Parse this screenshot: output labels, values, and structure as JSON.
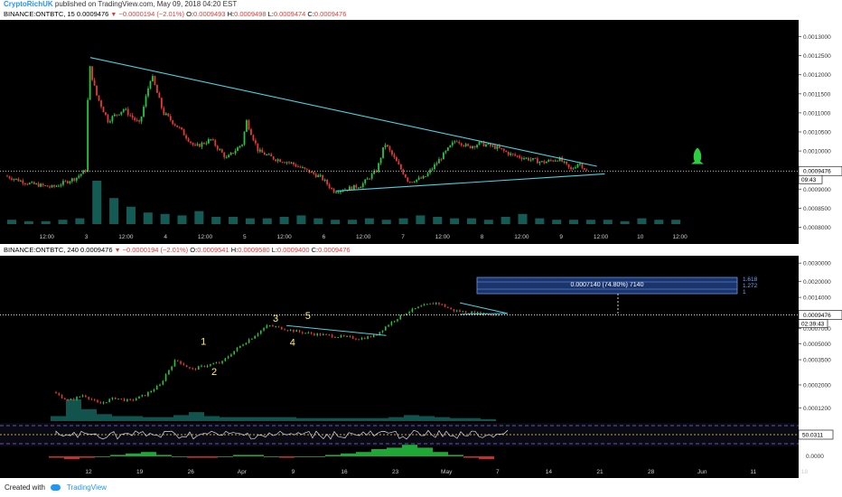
{
  "header": {
    "author": "CryptoRichUK",
    "publish_text": "published on TradingView.com, May 09, 2018 04:20 EST"
  },
  "top_legend": {
    "symbol": "BINANCE:ONTBTC, 15",
    "last": "0.0009476",
    "change": "−0.0000194 (−2.01%)",
    "o": "O:",
    "o_val": "0.0009493",
    "h": "H:",
    "h_val": "0.0009498",
    "l": "L:",
    "l_val": "0.0009474",
    "c": "C:",
    "c_val": "0.0009476"
  },
  "bottom_legend": {
    "symbol": "BINANCE:ONTBTC, 240",
    "last": "0.0009476",
    "change": "−0.0000194 (−2.01%)",
    "o": "O:",
    "o_val": "0.0009541",
    "h": "H:",
    "h_val": "0.0009580",
    "l": "L:",
    "l_val": "0.0009400",
    "c": "C:",
    "c_val": "0.0009476"
  },
  "footer": {
    "created_with": "Created with",
    "brand": "TradingView"
  },
  "colors": {
    "bull": "#26c640",
    "bear": "#e53935",
    "trendline": "#4dd0e1",
    "wave_label": "#fff176",
    "volume": "#26a69a",
    "rocket": "#2ecc40"
  },
  "chart_data": [
    {
      "type": "candlestick",
      "title": "BINANCE:ONTBTC, 15",
      "y_ticks": [
        "0.0013000",
        "0.0012500",
        "0.0012000",
        "0.0011500",
        "0.0011000",
        "0.0010500",
        "0.0010000",
        "0.0009500",
        "0.0009000",
        "0.0008500",
        "0.0008000"
      ],
      "ylim": [
        0.00078,
        0.00132
      ],
      "x_ticks": [
        "12:00",
        "3",
        "12:00",
        "4",
        "12:00",
        "5",
        "12:00",
        "6",
        "12:00",
        "7",
        "12:00",
        "8",
        "12:00",
        "9",
        "12:00",
        "10",
        "12:00"
      ],
      "last_price_label": "0.0009476",
      "countdown_label": "09:43",
      "trendlines": [
        {
          "name": "upper",
          "from": [
            3.05,
            0.001245
          ],
          "to": [
            9.45,
            0.00096
          ]
        },
        {
          "name": "lower",
          "from": [
            6.15,
            0.000895
          ],
          "to": [
            9.55,
            0.00094
          ]
        }
      ],
      "path_points": [
        [
          2.0,
          0.000935
        ],
        [
          2.3,
          0.000915
        ],
        [
          2.6,
          0.000905
        ],
        [
          2.9,
          0.00093
        ],
        [
          3.02,
          0.00095
        ],
        [
          3.06,
          0.00123
        ],
        [
          3.15,
          0.00115
        ],
        [
          3.3,
          0.00108
        ],
        [
          3.5,
          0.00111
        ],
        [
          3.7,
          0.00107
        ],
        [
          3.85,
          0.0012
        ],
        [
          4.0,
          0.0011
        ],
        [
          4.2,
          0.00106
        ],
        [
          4.4,
          0.00101
        ],
        [
          4.6,
          0.00103
        ],
        [
          4.8,
          0.00098
        ],
        [
          5.0,
          0.00102
        ],
        [
          5.05,
          0.00108
        ],
        [
          5.2,
          0.001
        ],
        [
          5.4,
          0.00098
        ],
        [
          5.6,
          0.00097
        ],
        [
          5.8,
          0.00095
        ],
        [
          6.0,
          0.00093
        ],
        [
          6.15,
          0.000895
        ],
        [
          6.3,
          0.0009
        ],
        [
          6.5,
          0.00091
        ],
        [
          6.7,
          0.00095
        ],
        [
          6.8,
          0.00102
        ],
        [
          6.95,
          0.00097
        ],
        [
          7.1,
          0.00092
        ],
        [
          7.3,
          0.00093
        ],
        [
          7.5,
          0.00098
        ],
        [
          7.7,
          0.00103
        ],
        [
          7.85,
          0.00101
        ],
        [
          8.0,
          0.00102
        ],
        [
          8.2,
          0.00101
        ],
        [
          8.4,
          0.00099
        ],
        [
          8.6,
          0.00098
        ],
        [
          8.8,
          0.00097
        ],
        [
          9.0,
          0.00098
        ],
        [
          9.15,
          0.00095
        ],
        [
          9.25,
          0.00097
        ],
        [
          9.35,
          0.000948
        ]
      ],
      "volume": [
        3,
        2,
        2,
        3,
        4,
        30,
        18,
        12,
        8,
        7,
        6,
        9,
        5,
        5,
        4,
        4,
        5,
        6,
        4,
        3,
        3,
        4,
        3,
        4,
        6,
        5,
        4,
        4,
        3,
        5,
        7,
        4,
        3,
        3,
        3,
        3,
        2,
        4,
        3,
        3
      ]
    },
    {
      "type": "candlestick",
      "title": "BINANCE:ONTBTC, 240",
      "y_ticks": [
        "0.0030000",
        "0.0020000",
        "0.0014000",
        "0.0009476",
        "0.0007000",
        "0.0005000",
        "0.0003500",
        "0.0002000",
        "0.0001200"
      ],
      "x_ticks": [
        "12",
        "19",
        "26",
        "Apr",
        "9",
        "16",
        "23",
        "May",
        "7",
        "14",
        "21",
        "28",
        "Jun",
        "11",
        "18"
      ],
      "last_price_label": "0.0009476",
      "countdown_label": "02:39:43",
      "log_scale": true,
      "wave_labels": [
        "1",
        "2",
        "3",
        "4",
        "5"
      ],
      "measure_label": "0.0007140 (74.80%) 7140",
      "fib_levels": [
        "1.618",
        "1.272",
        "1"
      ],
      "path_points": [
        [
          0,
          0.00017
        ],
        [
          1,
          0.00014
        ],
        [
          2,
          0.00016
        ],
        [
          3,
          0.00013
        ],
        [
          4,
          0.00015
        ],
        [
          5,
          0.00014
        ],
        [
          6,
          0.00016
        ],
        [
          7,
          0.0002
        ],
        [
          8,
          0.00035
        ],
        [
          9,
          0.00028
        ],
        [
          10,
          0.00031
        ],
        [
          11,
          0.00033
        ],
        [
          12,
          0.00045
        ],
        [
          13,
          0.00058
        ],
        [
          14,
          0.00075
        ],
        [
          15,
          0.0007
        ],
        [
          16,
          0.00065
        ],
        [
          17,
          0.00062
        ],
        [
          18,
          0.0006
        ],
        [
          19,
          0.00058
        ],
        [
          20,
          0.00056
        ],
        [
          21,
          0.0006
        ],
        [
          22,
          0.0008
        ],
        [
          23,
          0.001
        ],
        [
          24,
          0.00115
        ],
        [
          25,
          0.00125
        ],
        [
          26,
          0.00105
        ],
        [
          27,
          0.001
        ],
        [
          28,
          0.00098
        ],
        [
          29,
          0.000948
        ]
      ],
      "volume": [
        5,
        22,
        12,
        7,
        5,
        5,
        4,
        4,
        6,
        9,
        5,
        4,
        4,
        4,
        4,
        4,
        3,
        3,
        3,
        3,
        3,
        3,
        4,
        6,
        5,
        4,
        3,
        3,
        2
      ],
      "rsi_label": "50.0311",
      "macd_hist": [
        -1,
        -2,
        -1,
        0,
        1,
        2,
        3,
        1,
        0,
        -1,
        -1,
        0,
        1,
        1,
        0,
        -1,
        0,
        0,
        1,
        2,
        3,
        5,
        6,
        8,
        6,
        3,
        1,
        -1,
        -2
      ]
    }
  ]
}
